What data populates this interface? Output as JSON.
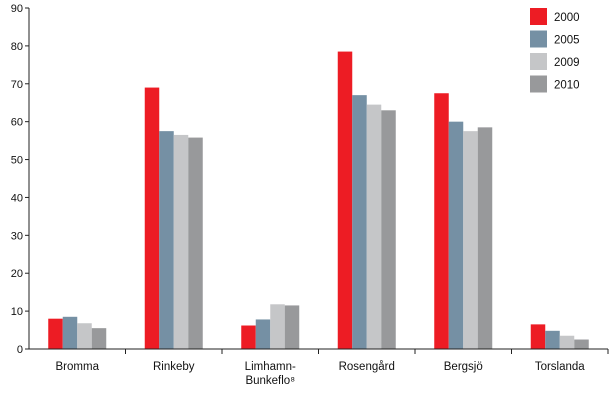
{
  "chart_data": {
    "type": "bar",
    "categories": [
      [
        "Bromma"
      ],
      [
        "Rinkeby"
      ],
      [
        "Limhamn-",
        "Bunkeflo⁸"
      ],
      [
        "Rosengård"
      ],
      [
        "Bergsjö"
      ],
      [
        "Torslanda"
      ]
    ],
    "series": [
      {
        "name": "2000",
        "color": "#ed1c24",
        "values": [
          8.0,
          69.0,
          6.2,
          78.5,
          67.5,
          6.5
        ]
      },
      {
        "name": "2005",
        "color": "#7590a4",
        "values": [
          8.5,
          57.5,
          7.8,
          67.0,
          60.0,
          4.8
        ]
      },
      {
        "name": "2009",
        "color": "#c5c6c8",
        "values": [
          6.8,
          56.5,
          11.8,
          64.5,
          57.5,
          3.5
        ]
      },
      {
        "name": "2010",
        "color": "#98999b",
        "values": [
          5.5,
          55.8,
          11.5,
          63.0,
          58.5,
          2.5
        ]
      }
    ],
    "ylim": [
      0,
      90
    ],
    "yticks": [
      0,
      10,
      20,
      30,
      40,
      50,
      60,
      70,
      80,
      90
    ],
    "title": "",
    "xlabel": "",
    "ylabel": "",
    "grid": false,
    "legend_position": "top-right"
  }
}
